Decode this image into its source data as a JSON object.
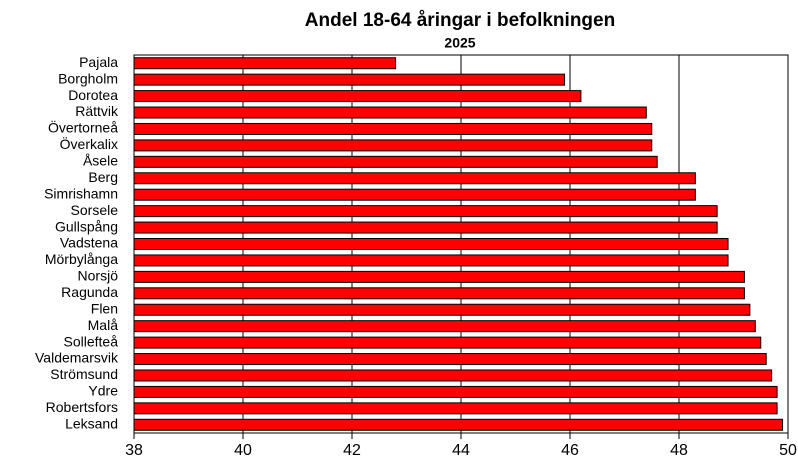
{
  "chart_data": {
    "type": "barh",
    "title": "Andel 18-64 åringar i befolkningen",
    "subtitle": "2025",
    "categories": [
      "Pajala",
      "Borgholm",
      "Dorotea",
      "Rättvik",
      "Övertorneå",
      "Överkalix",
      "Åsele",
      "Berg",
      "Simrishamn",
      "Sorsele",
      "Gullspång",
      "Vadstena",
      "Mörbylånga",
      "Norsjö",
      "Ragunda",
      "Flen",
      "Malå",
      "Sollefteå",
      "Valdemarsvik",
      "Strömsund",
      "Ydre",
      "Robertsfors",
      "Leksand"
    ],
    "values": [
      42.8,
      45.9,
      46.2,
      47.4,
      47.5,
      47.5,
      47.6,
      48.3,
      48.3,
      48.7,
      48.7,
      48.9,
      48.9,
      49.2,
      49.2,
      49.3,
      49.4,
      49.5,
      49.6,
      49.7,
      49.8,
      49.8,
      49.9
    ],
    "color": "#ff0000",
    "xlim": [
      38,
      50
    ],
    "xticks": [
      38,
      40,
      42,
      44,
      46,
      48,
      50
    ],
    "grid": true
  }
}
